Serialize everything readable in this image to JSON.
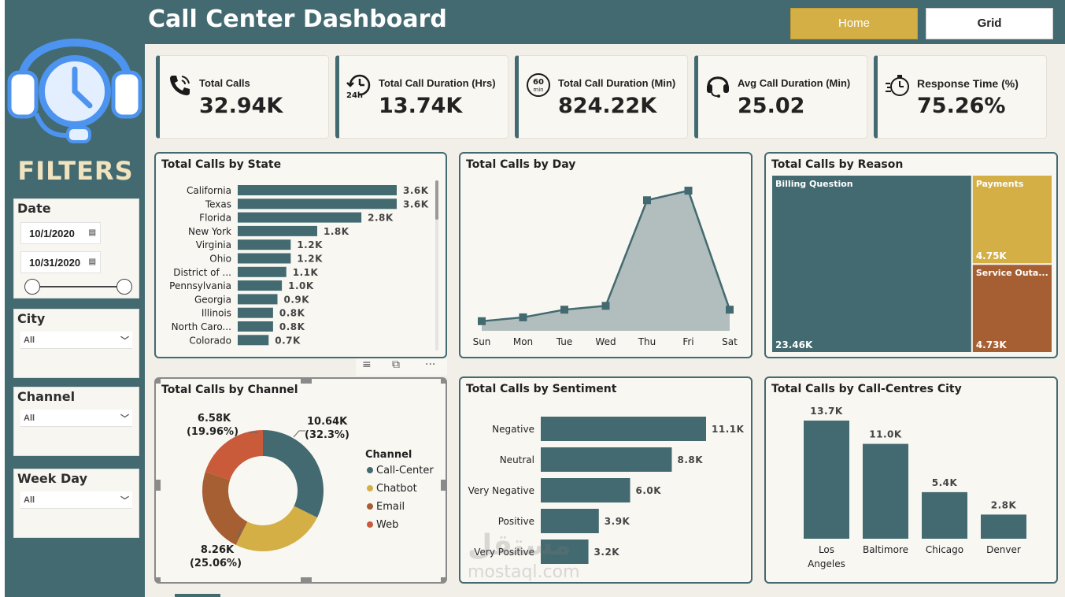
{
  "header": {
    "title": "Call Center Dashboard",
    "home_label": "Home",
    "grid_label": "Grid"
  },
  "sidebar": {
    "filters_title": "FILTERS",
    "date": {
      "title": "Date",
      "start": "10/1/2020",
      "end": "10/31/2020"
    },
    "city": {
      "title": "City",
      "value": "All"
    },
    "channel": {
      "title": "Channel",
      "value": "All"
    },
    "weekday": {
      "title": "Week Day",
      "value": "All"
    }
  },
  "kpis": [
    {
      "label": "Total Calls",
      "value": "32.94K",
      "icon": "phone-icon"
    },
    {
      "label": "Total Call Duration (Hrs)",
      "value": "13.74K",
      "icon": "24h-clock-icon"
    },
    {
      "label": "Total Call Duration (Min)",
      "value": "824.22K",
      "icon": "60min-timer-icon"
    },
    {
      "label": "Avg Call Duration (Min)",
      "value": "25.02",
      "icon": "headset-icon"
    },
    {
      "label": "Response Time (%)",
      "value": "75.26%",
      "icon": "stopwatch-icon"
    }
  ],
  "colors": {
    "primary": "#436a70",
    "gold": "#d4af45",
    "brown": "#a65f33",
    "orange": "#c95a3a",
    "area": "#b1bebd",
    "background": "#f1efe8"
  },
  "watermark": {
    "text": "مستقل",
    "sub": "mostaql.com"
  },
  "toolbar_icons": [
    "filter-icon",
    "focus-mode-icon",
    "more-options-icon"
  ],
  "chart_data": [
    {
      "id": "state",
      "type": "bar",
      "orientation": "horizontal",
      "title": "Total Calls by State",
      "categories": [
        "California",
        "Texas",
        "Florida",
        "New York",
        "Virginia",
        "Ohio",
        "District of ...",
        "Pennsylvania",
        "Georgia",
        "Illinois",
        "North Caro...",
        "Colorado"
      ],
      "values": [
        3.6,
        3.6,
        2.8,
        1.8,
        1.2,
        1.2,
        1.1,
        1.0,
        0.9,
        0.8,
        0.8,
        0.7
      ],
      "labels": [
        "3.6K",
        "3.6K",
        "2.8K",
        "1.8K",
        "1.2K",
        "1.2K",
        "1.1K",
        "1.0K",
        "0.9K",
        "0.8K",
        "0.8K",
        "0.7K"
      ]
    },
    {
      "id": "day",
      "type": "area",
      "title": "Total Calls by Day",
      "categories": [
        "Sun",
        "Mon",
        "Tue",
        "Wed",
        "Thu",
        "Fri",
        "Sat"
      ],
      "values": [
        0.5,
        0.7,
        1.1,
        1.3,
        6.8,
        7.3,
        1.1
      ]
    },
    {
      "id": "reason",
      "type": "treemap",
      "title": "Total Calls by Reason",
      "items": [
        {
          "name": "Billing Question",
          "value": 23.46,
          "label": "23.46K"
        },
        {
          "name": "Payments",
          "value": 4.75,
          "label": "4.75K"
        },
        {
          "name": "Service Outa...",
          "value": 4.73,
          "label": "4.73K"
        }
      ]
    },
    {
      "id": "channel",
      "type": "pie",
      "donut": true,
      "title": "Total Calls by Channel",
      "legend_title": "Channel",
      "items": [
        {
          "name": "Call-Center",
          "value": 10.64,
          "label": "10.64K",
          "pct": "(32.3%)"
        },
        {
          "name": "Chatbot",
          "value": 8.26,
          "label": "8.26K",
          "pct": "(25.06%)"
        },
        {
          "name": "Email",
          "value": 7.46
        },
        {
          "name": "Web",
          "value": 6.58,
          "label": "6.58K",
          "pct": "(19.96%)"
        }
      ]
    },
    {
      "id": "sentiment",
      "type": "bar",
      "orientation": "horizontal",
      "title": "Total Calls by Sentiment",
      "categories": [
        "Negative",
        "Neutral",
        "Very Negative",
        "Positive",
        "Very Positive"
      ],
      "values": [
        11.1,
        8.8,
        6.0,
        3.9,
        3.2
      ],
      "labels": [
        "11.1K",
        "8.8K",
        "6.0K",
        "3.9K",
        "3.2K"
      ]
    },
    {
      "id": "city",
      "type": "bar",
      "orientation": "vertical",
      "title": "Total Calls by Call-Centres City",
      "categories": [
        "Los Angeles",
        "Baltimore",
        "Chicago",
        "Denver"
      ],
      "values": [
        13.7,
        11.0,
        5.4,
        2.8
      ],
      "labels": [
        "13.7K",
        "11.0K",
        "5.4K",
        "2.8K"
      ]
    }
  ]
}
